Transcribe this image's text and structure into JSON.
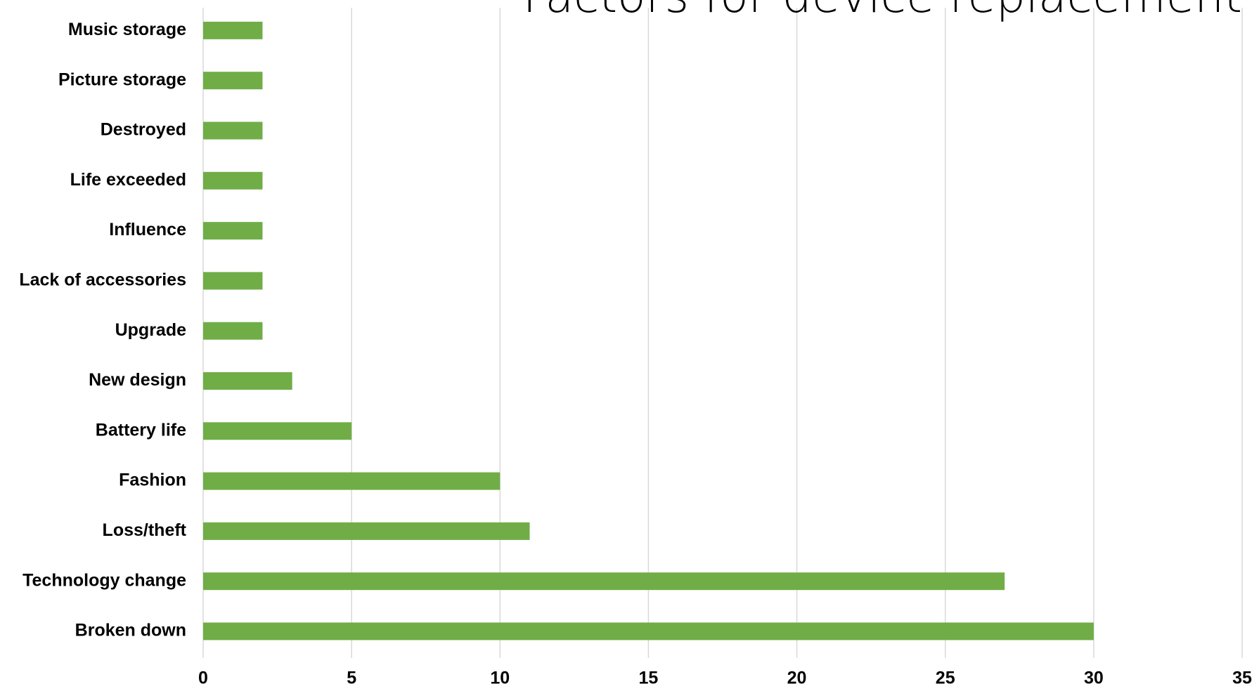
{
  "chart_data": {
    "type": "barh",
    "title": "Factors for device replacement",
    "categories": [
      "Music storage",
      "Picture storage",
      "Destroyed",
      "Life exceeded",
      "Influence",
      "Lack of accessories",
      "Upgrade",
      "New design",
      "Battery life",
      "Fashion",
      "Loss/theft",
      "Technology change",
      "Broken down"
    ],
    "values": [
      2,
      2,
      2,
      2,
      2,
      2,
      2,
      3,
      5,
      10,
      11,
      27,
      30
    ],
    "color": "#70ad47",
    "xlim": [
      0,
      35
    ],
    "xticks": [
      0,
      5,
      10,
      15,
      20,
      25,
      30,
      35
    ],
    "grid": true
  }
}
